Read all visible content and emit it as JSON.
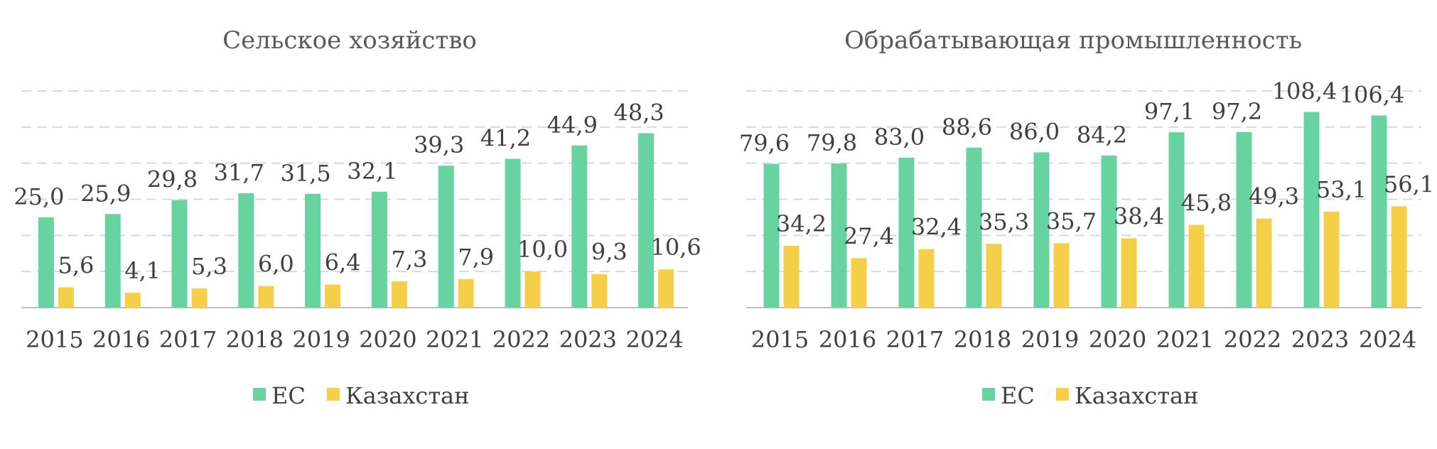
{
  "colors": {
    "eu": "#66D3A1",
    "kz": "#F5CF48",
    "grid": "#D9D9D9",
    "axis": "#BFBFBF"
  },
  "chart_data": [
    {
      "type": "bar",
      "title": "Сельское хозяйство",
      "categories": [
        "2015",
        "2016",
        "2017",
        "2018",
        "2019",
        "2020",
        "2021",
        "2022",
        "2023",
        "2024"
      ],
      "series": [
        {
          "name": "ЕС",
          "values": [
            25.0,
            25.9,
            29.8,
            31.7,
            31.5,
            32.1,
            39.3,
            41.2,
            44.9,
            48.3
          ],
          "labels": [
            "25,0",
            "25,9",
            "29,8",
            "31,7",
            "31,5",
            "32,1",
            "39,3",
            "41,2",
            "44,9",
            "48,3"
          ]
        },
        {
          "name": "Казахстан",
          "values": [
            5.6,
            4.1,
            5.3,
            6.0,
            6.4,
            7.3,
            7.9,
            10.0,
            9.3,
            10.6
          ],
          "labels": [
            "5,6",
            "4,1",
            "5,3",
            "6,0",
            "6,4",
            "7,3",
            "7,9",
            "10,0",
            "9,3",
            "10,6"
          ]
        }
      ],
      "ylim": [
        0,
        60
      ],
      "grid": true,
      "legend": "bottom"
    },
    {
      "type": "bar",
      "title": "Обрабатывающая промышленность",
      "categories": [
        "2015",
        "2016",
        "2017",
        "2018",
        "2019",
        "2020",
        "2021",
        "2022",
        "2023",
        "2024"
      ],
      "series": [
        {
          "name": "ЕС",
          "values": [
            79.6,
            79.8,
            83.0,
            88.6,
            86.0,
            84.2,
            97.1,
            97.2,
            108.4,
            106.4
          ],
          "labels": [
            "79,6",
            "79,8",
            "83,0",
            "88,6",
            "86,0",
            "84,2",
            "97,1",
            "97,2",
            "108,4",
            "106,4"
          ]
        },
        {
          "name": "Казахстан",
          "values": [
            34.2,
            27.4,
            32.4,
            35.3,
            35.7,
            38.4,
            45.8,
            49.3,
            53.1,
            56.1
          ],
          "labels": [
            "34,2",
            "27,4",
            "32,4",
            "35,3",
            "35,7",
            "38,4",
            "45,8",
            "49,3",
            "53,1",
            "56,1"
          ]
        }
      ],
      "ylim": [
        0,
        120
      ],
      "grid": true,
      "legend": "bottom"
    }
  ]
}
